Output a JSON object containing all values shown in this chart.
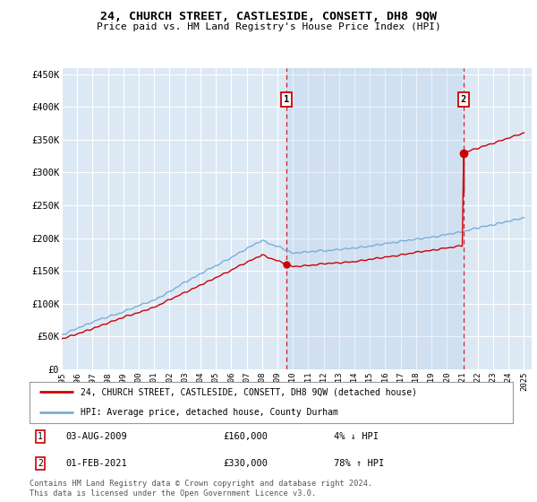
{
  "title": "24, CHURCH STREET, CASTLESIDE, CONSETT, DH8 9QW",
  "subtitle": "Price paid vs. HM Land Registry's House Price Index (HPI)",
  "ylabel_ticks": [
    "£0",
    "£50K",
    "£100K",
    "£150K",
    "£200K",
    "£250K",
    "£300K",
    "£350K",
    "£400K",
    "£450K"
  ],
  "ytick_values": [
    0,
    50000,
    100000,
    150000,
    200000,
    250000,
    300000,
    350000,
    400000,
    450000
  ],
  "ylim": [
    0,
    460000
  ],
  "xlim_start": 1995.0,
  "xlim_end": 2025.5,
  "background_color": "#dce9f5",
  "plot_bg_color": "#dce9f5",
  "grid_color": "#ffffff",
  "hpi_color": "#7aaed6",
  "price_color": "#cc0000",
  "sale1_x": 2009.58,
  "sale1_y": 160000,
  "sale2_x": 2021.08,
  "sale2_y": 330000,
  "legend_label1": "24, CHURCH STREET, CASTLESIDE, CONSETT, DH8 9QW (detached house)",
  "legend_label2": "HPI: Average price, detached house, County Durham",
  "footnote": "Contains HM Land Registry data © Crown copyright and database right 2024.\nThis data is licensed under the Open Government Licence v3.0.",
  "xtick_years": [
    1995,
    1996,
    1997,
    1998,
    1999,
    2000,
    2001,
    2002,
    2003,
    2004,
    2005,
    2006,
    2007,
    2008,
    2009,
    2010,
    2011,
    2012,
    2013,
    2014,
    2015,
    2016,
    2017,
    2018,
    2019,
    2020,
    2021,
    2022,
    2023,
    2024,
    2025
  ]
}
